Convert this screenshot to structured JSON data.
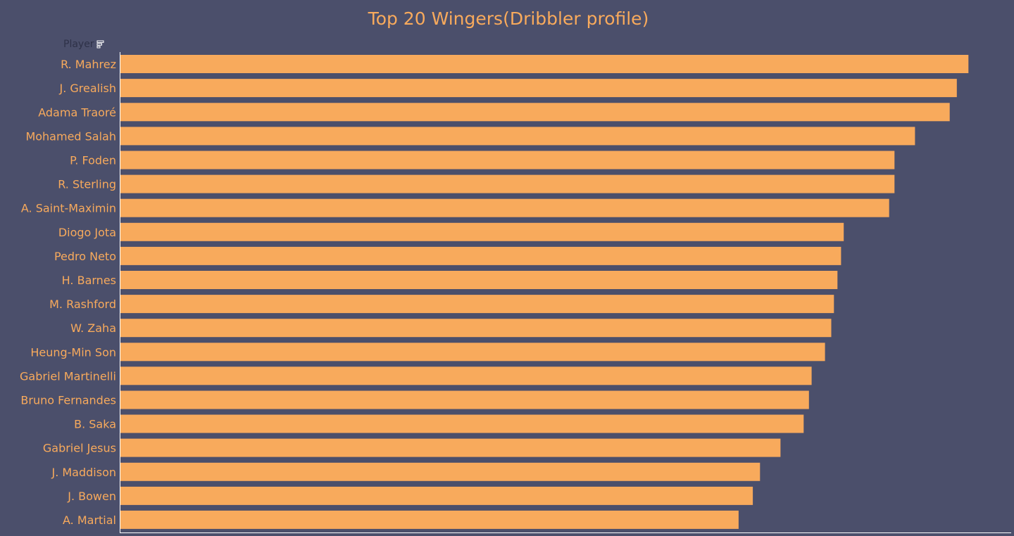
{
  "chart_data": {
    "type": "bar",
    "orientation": "horizontal",
    "title": "Top 20 Wingers(Dribbler profile)",
    "field_header": "Player",
    "categories": [
      "R. Mahrez",
      "J. Grealish",
      "Adama Traoré",
      "Mohamed Salah",
      "P. Foden",
      "R. Sterling",
      "A. Saint-Maximin",
      "Diogo Jota",
      "Pedro Neto",
      "H. Barnes",
      "M. Rashford",
      "W. Zaha",
      "Heung-Min Son",
      "Gabriel Martinelli",
      "Bruno Fernandes",
      "B. Saka",
      "Gabriel Jesus",
      "J. Maddison",
      "J. Bowen",
      "A. Martial"
    ],
    "values": [
      95.2,
      93.9,
      93.1,
      89.2,
      86.9,
      86.9,
      86.3,
      81.2,
      80.9,
      80.5,
      80.1,
      79.8,
      79.1,
      77.6,
      77.3,
      76.7,
      74.1,
      71.8,
      71.0,
      69.4
    ],
    "xlim": [
      0,
      100
    ],
    "grid": false,
    "legend": "none",
    "bar_color": "#f8aa5c",
    "label_color": "#f8aa5c",
    "background_color": "#4b4f6b"
  }
}
